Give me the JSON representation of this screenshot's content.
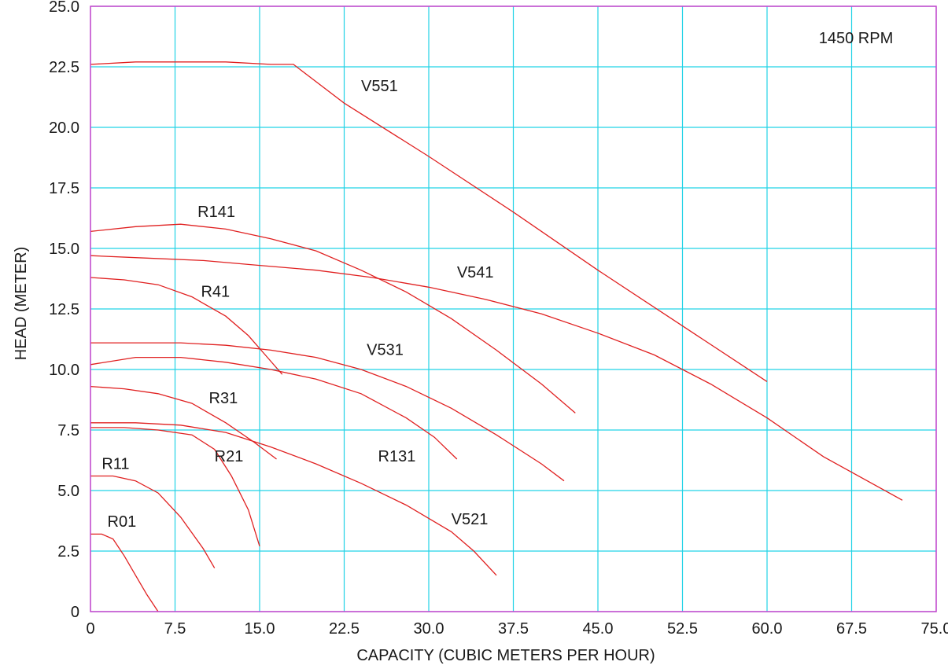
{
  "chart_data": {
    "type": "line",
    "title": "",
    "annotation": "1450 RPM",
    "xlabel": "CAPACITY (CUBIC METERS PER HOUR)",
    "ylabel": "HEAD (METER)",
    "xlim": [
      0,
      75
    ],
    "ylim": [
      0,
      25
    ],
    "x_ticks": [
      "0",
      "7.5",
      "15.0",
      "22.5",
      "30.0",
      "37.5",
      "45.0",
      "52.5",
      "60.0",
      "67.5",
      "75.0"
    ],
    "y_ticks": [
      "0",
      "2.5",
      "5.0",
      "7.5",
      "10.0",
      "12.5",
      "15.0",
      "17.5",
      "20.0",
      "22.5",
      "25.0"
    ],
    "x_tick_values": [
      0,
      7.5,
      15,
      22.5,
      30,
      37.5,
      45,
      52.5,
      60,
      67.5,
      75
    ],
    "y_tick_values": [
      0,
      2.5,
      5,
      7.5,
      10,
      12.5,
      15,
      17.5,
      20,
      22.5,
      25
    ],
    "grid": true,
    "grid_color": "#22d3e6",
    "frame_color": "#cc44cc",
    "line_color": "#e02020",
    "series": [
      {
        "name": "R01",
        "label_at": [
          1.5,
          3.5
        ],
        "points": [
          [
            0,
            3.2
          ],
          [
            1,
            3.2
          ],
          [
            2,
            3.0
          ],
          [
            3,
            2.3
          ],
          [
            4,
            1.5
          ],
          [
            5,
            0.7
          ],
          [
            6,
            0
          ]
        ]
      },
      {
        "name": "R11",
        "label_at": [
          1.0,
          5.9
        ],
        "points": [
          [
            0,
            5.6
          ],
          [
            2,
            5.6
          ],
          [
            4,
            5.4
          ],
          [
            6,
            4.9
          ],
          [
            8,
            3.9
          ],
          [
            10,
            2.6
          ],
          [
            11,
            1.8
          ]
        ]
      },
      {
        "name": "R21",
        "label_at": [
          11.0,
          6.2
        ],
        "points": [
          [
            0,
            7.6
          ],
          [
            3,
            7.6
          ],
          [
            6,
            7.5
          ],
          [
            9,
            7.3
          ],
          [
            11,
            6.7
          ],
          [
            12.5,
            5.6
          ],
          [
            14,
            4.2
          ],
          [
            15,
            2.7
          ]
        ]
      },
      {
        "name": "R31",
        "label_at": [
          10.5,
          8.6
        ],
        "points": [
          [
            0,
            9.3
          ],
          [
            3,
            9.2
          ],
          [
            6,
            9.0
          ],
          [
            9,
            8.6
          ],
          [
            12,
            7.8
          ],
          [
            14.5,
            7.0
          ],
          [
            16.5,
            6.3
          ]
        ]
      },
      {
        "name": "R41",
        "label_at": [
          9.8,
          13.0
        ],
        "points": [
          [
            0,
            13.8
          ],
          [
            3,
            13.7
          ],
          [
            6,
            13.5
          ],
          [
            9,
            13.0
          ],
          [
            12,
            12.2
          ],
          [
            14,
            11.4
          ],
          [
            15.5,
            10.6
          ],
          [
            17,
            9.8
          ]
        ]
      },
      {
        "name": "R131",
        "label_at": [
          25.5,
          6.2
        ],
        "points": [
          [
            0,
            10.2
          ],
          [
            4,
            10.5
          ],
          [
            8,
            10.5
          ],
          [
            12,
            10.3
          ],
          [
            16,
            10.0
          ],
          [
            20,
            9.6
          ],
          [
            24,
            9.0
          ],
          [
            28,
            8.0
          ],
          [
            30.5,
            7.2
          ],
          [
            32.5,
            6.3
          ]
        ]
      },
      {
        "name": "R141",
        "label_at": [
          9.5,
          16.3
        ],
        "points": [
          [
            0,
            15.7
          ],
          [
            4,
            15.9
          ],
          [
            8,
            16.0
          ],
          [
            12,
            15.8
          ],
          [
            16,
            15.4
          ],
          [
            20,
            14.9
          ],
          [
            24,
            14.1
          ],
          [
            28,
            13.2
          ],
          [
            32,
            12.1
          ],
          [
            36,
            10.8
          ],
          [
            40,
            9.4
          ],
          [
            43,
            8.2
          ]
        ]
      },
      {
        "name": "V521",
        "label_at": [
          32.0,
          3.6
        ],
        "points": [
          [
            0,
            7.8
          ],
          [
            4,
            7.8
          ],
          [
            8,
            7.7
          ],
          [
            12,
            7.4
          ],
          [
            16,
            6.8
          ],
          [
            20,
            6.1
          ],
          [
            24,
            5.3
          ],
          [
            28,
            4.4
          ],
          [
            32,
            3.3
          ],
          [
            34,
            2.5
          ],
          [
            36,
            1.5
          ]
        ]
      },
      {
        "name": "V531",
        "label_at": [
          24.5,
          10.6
        ],
        "points": [
          [
            0,
            11.1
          ],
          [
            4,
            11.1
          ],
          [
            8,
            11.1
          ],
          [
            12,
            11.0
          ],
          [
            16,
            10.8
          ],
          [
            20,
            10.5
          ],
          [
            24,
            10.0
          ],
          [
            28,
            9.3
          ],
          [
            32,
            8.4
          ],
          [
            36,
            7.3
          ],
          [
            40,
            6.1
          ],
          [
            42,
            5.4
          ]
        ]
      },
      {
        "name": "V541",
        "label_at": [
          32.5,
          13.8
        ],
        "points": [
          [
            0,
            14.7
          ],
          [
            5,
            14.6
          ],
          [
            10,
            14.5
          ],
          [
            15,
            14.3
          ],
          [
            20,
            14.1
          ],
          [
            25,
            13.8
          ],
          [
            30,
            13.4
          ],
          [
            35,
            12.9
          ],
          [
            40,
            12.3
          ],
          [
            45,
            11.5
          ],
          [
            50,
            10.6
          ],
          [
            55,
            9.4
          ],
          [
            60,
            8.0
          ],
          [
            65,
            6.4
          ],
          [
            72,
            4.6
          ]
        ]
      },
      {
        "name": "V551",
        "label_at": [
          24.0,
          21.5
        ],
        "points": [
          [
            0,
            22.6
          ],
          [
            4,
            22.7
          ],
          [
            8,
            22.7
          ],
          [
            12,
            22.7
          ],
          [
            16,
            22.6
          ],
          [
            18,
            22.6
          ],
          [
            22.5,
            21.0
          ],
          [
            30,
            18.8
          ],
          [
            37.5,
            16.5
          ],
          [
            45,
            14.1
          ],
          [
            52.5,
            11.8
          ],
          [
            60,
            9.5
          ]
        ]
      }
    ]
  }
}
